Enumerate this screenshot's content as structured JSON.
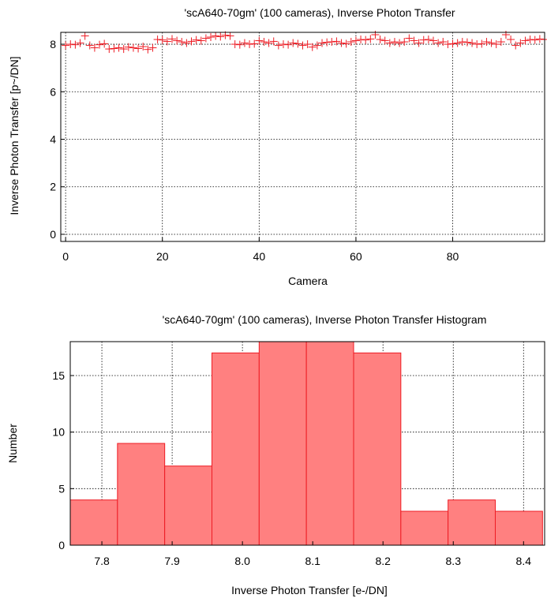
{
  "chart_data": [
    {
      "type": "scatter",
      "title": "'scA640-70gm' (100 cameras), Inverse Photon Transfer",
      "xlabel": "Camera",
      "ylabel": "Inverse Photon Transfer [p~/DN]",
      "xlim": [
        -1,
        99
      ],
      "ylim": [
        -0.3,
        8.5
      ],
      "xticks": [
        0,
        20,
        40,
        60,
        80
      ],
      "yticks": [
        0,
        2,
        4,
        6,
        8
      ],
      "grid": true,
      "marker": "plus",
      "color": "#ee1c24",
      "x": [
        0,
        1,
        2,
        3,
        4,
        5,
        6,
        7,
        8,
        9,
        10,
        11,
        12,
        13,
        14,
        15,
        16,
        17,
        18,
        19,
        20,
        21,
        22,
        23,
        24,
        25,
        26,
        27,
        28,
        29,
        30,
        31,
        32,
        33,
        34,
        35,
        36,
        37,
        38,
        39,
        40,
        41,
        42,
        43,
        44,
        45,
        46,
        47,
        48,
        49,
        50,
        51,
        52,
        53,
        54,
        55,
        56,
        57,
        58,
        59,
        60,
        61,
        62,
        63,
        64,
        65,
        66,
        67,
        68,
        69,
        70,
        71,
        72,
        73,
        74,
        75,
        76,
        77,
        78,
        79,
        80,
        81,
        82,
        83,
        84,
        85,
        86,
        87,
        88,
        89,
        90,
        91,
        92,
        93,
        94,
        95,
        96,
        97,
        98,
        99
      ],
      "y": [
        7.95,
        8.0,
        7.98,
        8.05,
        8.35,
        7.95,
        7.85,
        7.98,
        8.02,
        7.8,
        7.82,
        7.85,
        7.8,
        7.88,
        7.85,
        7.82,
        7.9,
        7.78,
        7.85,
        8.2,
        8.18,
        8.12,
        8.22,
        8.15,
        8.1,
        8.05,
        8.12,
        8.18,
        8.15,
        8.25,
        8.3,
        8.35,
        8.32,
        8.38,
        8.35,
        8.0,
        7.98,
        8.05,
        8.0,
        8.02,
        8.15,
        8.1,
        8.05,
        8.12,
        7.95,
        8.0,
        7.98,
        8.05,
        8.02,
        7.95,
        8.0,
        7.88,
        7.95,
        8.05,
        8.08,
        8.1,
        8.12,
        8.05,
        8.02,
        8.1,
        8.15,
        8.2,
        8.18,
        8.22,
        8.4,
        8.2,
        8.15,
        8.05,
        8.1,
        8.05,
        8.1,
        8.25,
        8.15,
        8.05,
        8.18,
        8.2,
        8.15,
        8.05,
        8.1,
        8.0,
        8.02,
        8.05,
        8.1,
        8.08,
        8.05,
        8.0,
        8.02,
        8.1,
        8.05,
        8.0,
        8.1,
        8.4,
        8.2,
        7.95,
        8.05,
        8.15,
        8.2,
        8.18,
        8.22,
        8.2
      ]
    },
    {
      "type": "bar",
      "title": "'scA640-70gm' (100 cameras), Inverse Photon Transfer Histogram",
      "xlabel": "Inverse Photon Transfer [e-/DN]",
      "ylabel": "Number",
      "xlim": [
        7.755,
        8.43
      ],
      "ylim": [
        0,
        18
      ],
      "xticks": [
        "7.8",
        "7.9",
        "8.0",
        "8.1",
        "8.2",
        "8.3",
        "8.4"
      ],
      "yticks": [
        0,
        5,
        10,
        15
      ],
      "grid": true,
      "bar_color": "#ff8080",
      "edge_color": "#ee1c24",
      "bin_edges": [
        7.755,
        7.8222,
        7.8894,
        7.9566,
        8.0238,
        8.091,
        8.1582,
        8.2254,
        8.2926,
        8.3598,
        8.427
      ],
      "values": [
        4,
        9,
        7,
        17,
        18,
        18,
        17,
        3,
        4,
        3
      ]
    }
  ]
}
